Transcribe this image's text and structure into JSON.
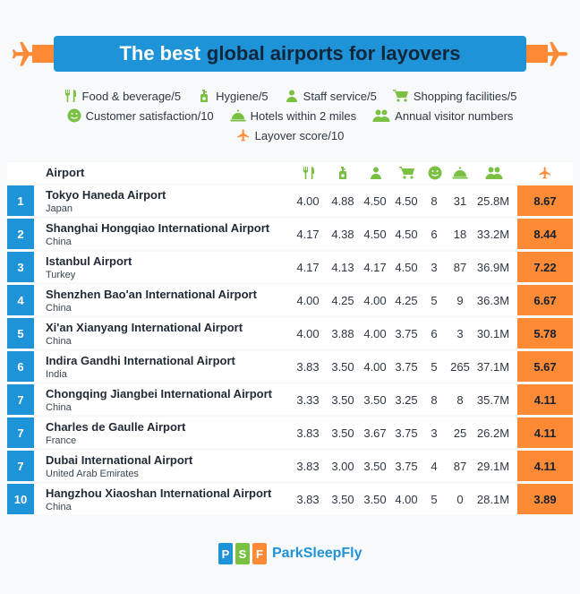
{
  "title": {
    "part1": "The best",
    "part2": "global airports for layovers"
  },
  "legend": [
    {
      "icon": "fork-knife-icon",
      "label": "Food & beverage/5"
    },
    {
      "icon": "soap-bottle-icon",
      "label": "Hygiene/5"
    },
    {
      "icon": "staff-person-icon",
      "label": "Staff service/5"
    },
    {
      "icon": "shopping-cart-icon",
      "label": "Shopping facilities/5"
    },
    {
      "icon": "smiley-face-icon",
      "label": "Customer satisfaction/10"
    },
    {
      "icon": "hotel-bell-icon",
      "label": "Hotels within 2 miles"
    },
    {
      "icon": "people-group-icon",
      "label": "Annual visitor numbers"
    },
    {
      "icon": "airplane-icon",
      "label": "Layover score/10"
    }
  ],
  "colors": {
    "blue": "#1f93d8",
    "orange": "#ff8a35",
    "green": "#7ac143",
    "navy": "#10263b"
  },
  "chart_data": {
    "type": "table",
    "header": {
      "airport": "Airport"
    },
    "column_icons": [
      "fork-knife-icon",
      "soap-bottle-icon",
      "staff-person-icon",
      "shopping-cart-icon",
      "smiley-face-icon",
      "hotel-bell-icon",
      "people-group-icon",
      "airplane-icon"
    ],
    "rows": [
      {
        "rank": "1",
        "airport": "Tokyo Haneda Airport",
        "country": "Japan",
        "food": "4.00",
        "hygiene": "4.88",
        "staff": "4.50",
        "shopping": "4.50",
        "satisfaction": "8",
        "hotels": "31",
        "visitors": "25.8M",
        "score": "8.67"
      },
      {
        "rank": "2",
        "airport": "Shanghai Hongqiao International Airport",
        "country": "China",
        "food": "4.17",
        "hygiene": "4.38",
        "staff": "4.50",
        "shopping": "4.50",
        "satisfaction": "6",
        "hotels": "18",
        "visitors": "33.2M",
        "score": "8.44"
      },
      {
        "rank": "3",
        "airport": "Istanbul Airport",
        "country": "Turkey",
        "food": "4.17",
        "hygiene": "4.13",
        "staff": "4.17",
        "shopping": "4.50",
        "satisfaction": "3",
        "hotels": "87",
        "visitors": "36.9M",
        "score": "7.22"
      },
      {
        "rank": "4",
        "airport": "Shenzhen Bao'an International Airport",
        "country": "China",
        "food": "4.00",
        "hygiene": "4.25",
        "staff": "4.00",
        "shopping": "4.25",
        "satisfaction": "5",
        "hotels": "9",
        "visitors": "36.3M",
        "score": "6.67"
      },
      {
        "rank": "5",
        "airport": "Xi'an Xianyang International Airport",
        "country": "China",
        "food": "4.00",
        "hygiene": "3.88",
        "staff": "4.00",
        "shopping": "3.75",
        "satisfaction": "6",
        "hotels": "3",
        "visitors": "30.1M",
        "score": "5.78"
      },
      {
        "rank": "6",
        "airport": "Indira Gandhi International Airport",
        "country": "India",
        "food": "3.83",
        "hygiene": "3.50",
        "staff": "4.00",
        "shopping": "3.75",
        "satisfaction": "5",
        "hotels": "265",
        "visitors": "37.1M",
        "score": "5.67"
      },
      {
        "rank": "7",
        "airport": "Chongqing Jiangbei International Airport",
        "country": "China",
        "food": "3.33",
        "hygiene": "3.50",
        "staff": "3.50",
        "shopping": "3.25",
        "satisfaction": "8",
        "hotels": "8",
        "visitors": "35.7M",
        "score": "4.11"
      },
      {
        "rank": "7",
        "airport": "Charles de Gaulle Airport",
        "country": "France",
        "food": "3.83",
        "hygiene": "3.50",
        "staff": "3.67",
        "shopping": "3.75",
        "satisfaction": "3",
        "hotels": "25",
        "visitors": "26.2M",
        "score": "4.11"
      },
      {
        "rank": "7",
        "airport": "Dubai International Airport",
        "country": "United Arab Emirates",
        "food": "3.83",
        "hygiene": "3.00",
        "staff": "3.50",
        "shopping": "3.75",
        "satisfaction": "4",
        "hotels": "87",
        "visitors": "29.1M",
        "score": "4.11"
      },
      {
        "rank": "10",
        "airport": "Hangzhou Xiaoshan International Airport",
        "country": "China",
        "food": "3.83",
        "hygiene": "3.50",
        "staff": "3.50",
        "shopping": "4.00",
        "satisfaction": "5",
        "hotels": "0",
        "visitors": "28.1M",
        "score": "3.89"
      }
    ]
  },
  "logo": {
    "letters": [
      "P",
      "S",
      "F"
    ],
    "text": "ParkSleepFly"
  }
}
